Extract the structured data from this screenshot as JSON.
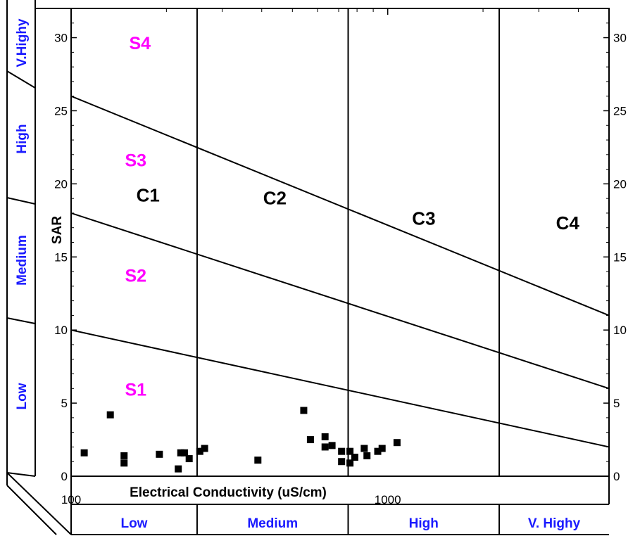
{
  "chart_data": {
    "type": "scatter",
    "title": "",
    "xlabel": "Electrical Conductivity (uS/cm)",
    "ylabel": "SAR",
    "x_scale": "log",
    "xlim": [
      100,
      5000
    ],
    "ylim": [
      0,
      32
    ],
    "x_tick_labels": [
      {
        "value": 100,
        "label": "100"
      },
      {
        "value": 1000,
        "label": "1000"
      }
    ],
    "x_minor_ticks": [
      200,
      300,
      400,
      500,
      600,
      700,
      800,
      900,
      2000,
      3000,
      4000
    ],
    "y_ticks": [
      0,
      5,
      10,
      15,
      20,
      25,
      30
    ],
    "y_tick_labels": [
      "0",
      "5",
      "10",
      "15",
      "20",
      "25",
      "30"
    ],
    "salinity_boundaries": [
      250,
      750,
      2250
    ],
    "salinity_classes": [
      "C1",
      "C2",
      "C3",
      "C4"
    ],
    "salinity_class_label_positions": [
      {
        "label": "C1",
        "x": 175,
        "y": 18.8
      },
      {
        "label": "C2",
        "x": 440,
        "y": 18.6
      },
      {
        "label": "C3",
        "x": 1300,
        "y": 17.2
      },
      {
        "label": "C4",
        "x": 3700,
        "y": 16.9
      }
    ],
    "sodium_hazard_lines": [
      {
        "x": [
          100,
          5000
        ],
        "y": [
          10,
          2
        ]
      },
      {
        "x": [
          100,
          5000
        ],
        "y": [
          18,
          6
        ]
      },
      {
        "x": [
          100,
          5000
        ],
        "y": [
          26,
          11
        ]
      }
    ],
    "sodium_classes": [
      {
        "label": "S1",
        "x": 160,
        "y": 5.5
      },
      {
        "label": "S2",
        "x": 160,
        "y": 13.3
      },
      {
        "label": "S3",
        "x": 160,
        "y": 21.2
      },
      {
        "label": "S4",
        "x": 165,
        "y": 29.2
      }
    ],
    "x_band_labels": [
      "Low",
      "Medium",
      "High",
      "V. Highy"
    ],
    "y_band_labels": [
      "Low",
      "Medium",
      "High",
      "V.Highy"
    ],
    "series": [
      {
        "marker": "square",
        "color": "#000000",
        "points": [
          [
            110,
            1.6
          ],
          [
            133,
            4.2
          ],
          [
            147,
            1.4
          ],
          [
            147,
            0.9
          ],
          [
            190,
            1.5
          ],
          [
            218,
            0.5
          ],
          [
            222,
            1.6
          ],
          [
            228,
            1.6
          ],
          [
            236,
            1.2
          ],
          [
            255,
            1.7
          ],
          [
            264,
            1.9
          ],
          [
            389,
            1.1
          ],
          [
            543,
            4.5
          ],
          [
            570,
            2.5
          ],
          [
            634,
            2.7
          ],
          [
            634,
            2.0
          ],
          [
            667,
            2.1
          ],
          [
            715,
            1.7
          ],
          [
            715,
            1.0
          ],
          [
            760,
            1.7
          ],
          [
            760,
            0.9
          ],
          [
            787,
            1.3
          ],
          [
            843,
            1.9
          ],
          [
            860,
            1.4
          ],
          [
            930,
            1.7
          ],
          [
            960,
            1.9
          ],
          [
            1070,
            2.3
          ]
        ]
      }
    ]
  }
}
